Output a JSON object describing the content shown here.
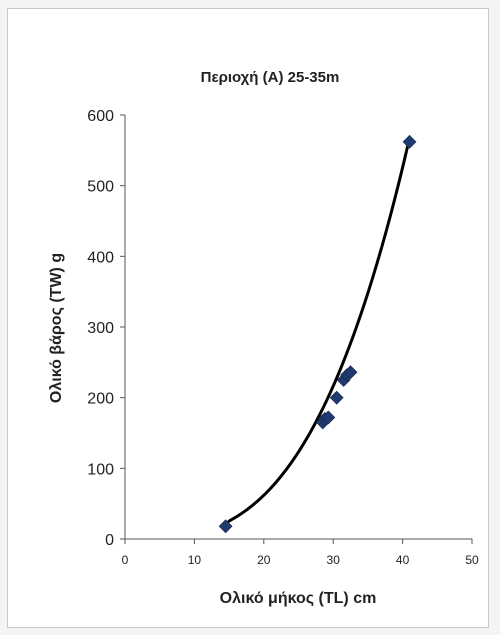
{
  "chart_data": {
    "type": "scatter",
    "title": "Περιοχή (A) 25-35m",
    "xlabel": "Ολικό μήκος (TL) cm",
    "ylabel": "Ολικό βάρος (TW) g",
    "xlim": [
      0,
      50
    ],
    "ylim": [
      0,
      600
    ],
    "xticks": [
      0,
      10,
      20,
      30,
      40,
      50
    ],
    "yticks": [
      0,
      100,
      200,
      300,
      400,
      500,
      600
    ],
    "grid": false,
    "legend": "none",
    "marker_color": "#1f3a6e",
    "trend_color": "#000000",
    "points": [
      {
        "x": 14.5,
        "y": 18
      },
      {
        "x": 28.5,
        "y": 165
      },
      {
        "x": 28.8,
        "y": 170
      },
      {
        "x": 29.3,
        "y": 172
      },
      {
        "x": 30.5,
        "y": 200
      },
      {
        "x": 31.5,
        "y": 225
      },
      {
        "x": 32.0,
        "y": 232
      },
      {
        "x": 32.5,
        "y": 236
      },
      {
        "x": 41.0,
        "y": 562
      }
    ],
    "trendline": {
      "type": "power",
      "a": 0.00596,
      "b": 3.087,
      "x_range": [
        15,
        41
      ]
    }
  }
}
